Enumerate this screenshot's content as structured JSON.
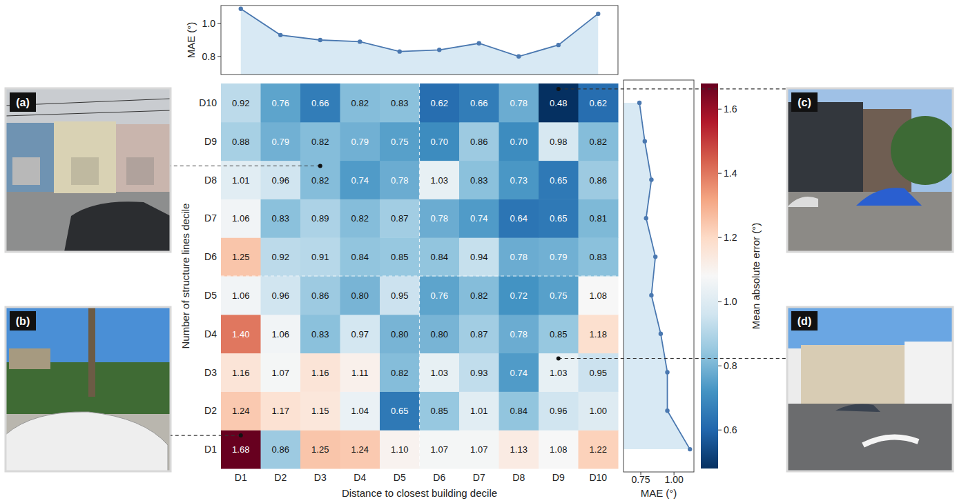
{
  "chart_data": [
    {
      "type": "heatmap",
      "x_label": "Distance to closest building decile",
      "y_label": "Number of structure lines decile",
      "x_categories": [
        "D1",
        "D2",
        "D3",
        "D4",
        "D5",
        "D6",
        "D7",
        "D8",
        "D9",
        "D10"
      ],
      "y_categories": [
        "D1",
        "D2",
        "D3",
        "D4",
        "D5",
        "D6",
        "D7",
        "D8",
        "D9",
        "D10"
      ],
      "cells": [
        [
          1.68,
          0.86,
          1.25,
          1.24,
          1.1,
          1.07,
          1.07,
          1.13,
          1.08,
          1.22
        ],
        [
          1.24,
          1.17,
          1.15,
          1.04,
          0.65,
          0.85,
          1.01,
          0.84,
          0.96,
          1.0
        ],
        [
          1.16,
          1.07,
          1.16,
          1.11,
          0.82,
          1.03,
          0.93,
          0.74,
          1.03,
          0.95
        ],
        [
          1.4,
          1.06,
          0.83,
          0.97,
          0.8,
          0.8,
          0.87,
          0.78,
          0.85,
          1.18
        ],
        [
          1.06,
          0.96,
          0.86,
          0.8,
          0.95,
          0.76,
          0.82,
          0.72,
          0.75,
          1.08
        ],
        [
          1.25,
          0.92,
          0.91,
          0.84,
          0.85,
          0.84,
          0.94,
          0.78,
          0.79,
          0.83
        ],
        [
          1.06,
          0.83,
          0.89,
          0.82,
          0.87,
          0.78,
          0.74,
          0.64,
          0.65,
          0.81
        ],
        [
          1.01,
          0.96,
          0.82,
          0.74,
          0.78,
          1.03,
          0.83,
          0.73,
          0.65,
          0.86
        ],
        [
          0.88,
          0.79,
          0.82,
          0.79,
          0.75,
          0.7,
          0.86,
          0.7,
          0.98,
          0.82
        ],
        [
          0.92,
          0.76,
          0.66,
          0.82,
          0.83,
          0.62,
          0.66,
          0.78,
          0.48,
          0.62
        ]
      ],
      "value_labels": [
        [
          "1.68",
          "0.86",
          "1.25",
          "1.24",
          "1.10",
          "1.07",
          "1.07",
          "1.13",
          "1.08",
          "1.22"
        ],
        [
          "1.24",
          "1.17",
          "1.15",
          "1.04",
          "0.65",
          "0.85",
          "1.01",
          "0.84",
          "0.96",
          "1.00"
        ],
        [
          "1.16",
          "1.07",
          "1.16",
          "1.11",
          "0.82",
          "1.03",
          "0.93",
          "0.74",
          "1.03",
          "0.95"
        ],
        [
          "1.40",
          "1.06",
          "0.83",
          "0.97",
          "0.80",
          "0.80",
          "0.87",
          "0.78",
          "0.85",
          "1.18"
        ],
        [
          "1.06",
          "0.96",
          "0.86",
          "0.80",
          "0.95",
          "0.76",
          "0.82",
          "0.72",
          "0.75",
          "1.08"
        ],
        [
          "1.25",
          "0.92",
          "0.91",
          "0.84",
          "0.85",
          "0.84",
          "0.94",
          "0.78",
          "0.79",
          "0.83"
        ],
        [
          "1.06",
          "0.83",
          "0.89",
          "0.82",
          "0.87",
          "0.78",
          "0.74",
          "0.64",
          "0.65",
          "0.81"
        ],
        [
          "1.01",
          "0.96",
          "0.82",
          "0.74",
          "0.78",
          "1.03",
          "0.83",
          "0.73",
          "0.65",
          "0.86"
        ],
        [
          "0.88",
          "0.79",
          "0.82",
          "0.79",
          "0.75",
          "0.70",
          "0.86",
          "0.70",
          "0.98",
          "0.82"
        ],
        [
          "0.92",
          "0.76",
          "0.66",
          "0.82",
          "0.83",
          "0.62",
          "0.66",
          "0.78",
          "0.48",
          "0.62"
        ]
      ],
      "data_labels": true,
      "colorbar": {
        "label": "Mean absolute error (°)",
        "range": [
          0.48,
          1.68
        ],
        "ticks": [
          0.6,
          0.8,
          {
            "value": 1,
            "label": "1.0"
          },
          1.2,
          1.4,
          1.6
        ]
      },
      "annotations": [
        {
          "text": "(a)",
          "x": "D3",
          "y": "D8"
        },
        {
          "text": "(b)",
          "x": "D1",
          "y": "D1"
        },
        {
          "text": "(c)",
          "x": "D9",
          "y": "D10"
        },
        {
          "text": "(d)",
          "x": "D9",
          "y": "D3"
        }
      ]
    },
    {
      "type": "line",
      "y_label": "MAE (°)",
      "categories": [
        "D1",
        "D2",
        "D3",
        "D4",
        "D5",
        "D6",
        "D7",
        "D8",
        "D9",
        "D10"
      ],
      "values": [
        1.09,
        0.93,
        0.9,
        0.89,
        0.83,
        0.84,
        0.88,
        0.8,
        0.87,
        1.06
      ],
      "ylim": [
        0.69,
        1.11
      ],
      "yticks": [
        0.8,
        {
          "value": 1,
          "label": "1.0"
        }
      ],
      "tick_labels": "y",
      "color": "#4a78b0",
      "marker": "circle"
    },
    {
      "type": "line",
      "orientation": "horizontal",
      "x_label": "MAE (°)",
      "categories": [
        "D1",
        "D2",
        "D3",
        "D4",
        "D5",
        "D6",
        "D7",
        "D8",
        "D9",
        "D10"
      ],
      "values": [
        1.12,
        0.95,
        0.95,
        0.9,
        0.83,
        0.86,
        0.79,
        0.83,
        0.78,
        0.74
      ],
      "xlim": [
        0.62,
        1.15
      ],
      "xticks": [
        0.75,
        {
          "value": 1,
          "label": "1.00"
        }
      ],
      "tick_labels": "x",
      "color": "#4a78b0",
      "marker": "circle"
    }
  ]
}
